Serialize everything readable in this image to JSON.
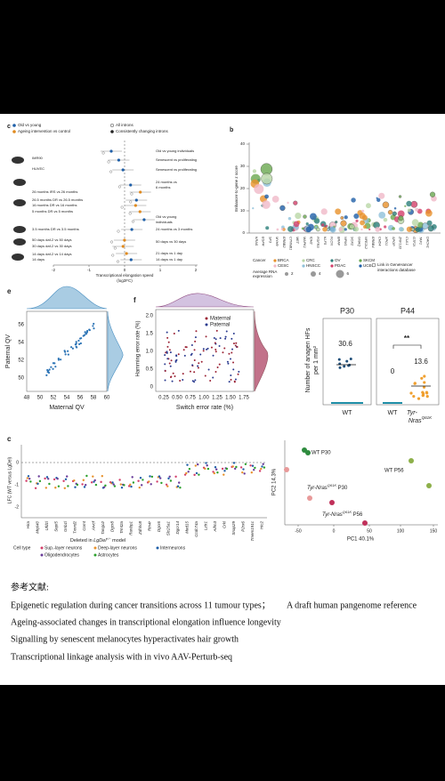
{
  "panel_c_top": {
    "label": "c",
    "legend": [
      "Old vs young",
      "Ageing intervention vs control",
      "All introns",
      "Consistently changing introns"
    ],
    "left_labels": [
      "IMR90",
      "HUVEC",
      "26 months IRS vs 26 months",
      "26.5 months DR vs 26.5 months",
      "16 months DR vs 16 months",
      "5 months DR vs 5 months",
      "3.5 months DR vs 3.5 months",
      "50 days daf-2 vs 50 days",
      "30 days daf-2 vs 30 days",
      "14 days daf-2 vs 14 days",
      "14 days"
    ],
    "right_labels": [
      "Old vs young individuals",
      "Senescent vs proliferating",
      "Senescent vs proliferating",
      "24 months vs",
      "6 months",
      "Old vs young",
      "individuals",
      "24 months vs 3 months",
      "50 days vs 30 days",
      "21 days vs 1 day",
      "14 days vs 1 day"
    ],
    "xticks": [
      "-2",
      "-1",
      "0",
      "1",
      "2"
    ],
    "xlabel": "Transcriptional elongation speed",
    "xlabel_unit": "(log2FC)"
  },
  "panel_b": {
    "label": "b",
    "ylabel": "Enhancer-to-gene z score",
    "yticks": [
      "40",
      "30",
      "20",
      "10",
      "0"
    ],
    "genes": [
      "KRAS",
      "EGFR",
      "SF3",
      "MYH9",
      "ERBB2",
      "CTNNB1",
      "MET",
      "MAPK1",
      "IDH2",
      "FGFR3",
      "KLF5",
      "FLCN",
      "BRAF",
      "NPM1",
      "SOX2",
      "GNAQ",
      "NFE2L2",
      "ERBB4",
      "CHD4",
      "XPO1",
      "SPOP",
      "ZNF133",
      "CUL1",
      "GTF2I",
      "TAF1",
      "DACH1"
    ],
    "cancer_title": "Cancer",
    "cancers": [
      "BRCA",
      "CESC",
      "CRC",
      "HNSCC",
      "OV",
      "PDAC",
      "SKCM",
      "UCEC"
    ],
    "rna_title": [
      "Average RNA",
      "expression"
    ],
    "rna_sizes": [
      "2",
      "4",
      "6"
    ],
    "link": [
      "Link in GeneHancer",
      "interactions database"
    ]
  },
  "panel_e": {
    "label": "e",
    "ylabel": "Paternal QV",
    "xlabel": "Maternal QV",
    "xticks": [
      "48",
      "50",
      "52",
      "54",
      "56",
      "58",
      "60"
    ],
    "yticks": [
      "56",
      "54",
      "52",
      "50"
    ]
  },
  "panel_f": {
    "label": "f",
    "ylabel": "Hamming error rate (%)",
    "xlabel": "Switch error rate (%)",
    "legend": [
      "Maternal",
      "Paternal"
    ],
    "xticks": [
      "0.25",
      "0.50",
      "0.75",
      "1.00",
      "1.25",
      "1.50",
      "1.75"
    ],
    "yticks": [
      "2.0",
      "1.5",
      "1.0",
      "0.5",
      "0"
    ]
  },
  "panel_hair": {
    "ylabel": [
      "Number of anagen HFs",
      "per 1 mm²"
    ],
    "titles": [
      "P30",
      "P44"
    ],
    "values": [
      "30.6",
      "0",
      "13.6"
    ],
    "significance": "**",
    "groups": [
      "WT",
      "WT"
    ],
    "mutant": {
      "name": "Tyr-",
      "gene": "Nras",
      "sup": "Q61K"
    }
  },
  "panel_lfc": {
    "label": "c",
    "ylabel": "LFC (WT versus LgDel)",
    "yticks": [
      "0",
      "-1",
      "-2"
    ],
    "genes": [
      "Hira",
      "Mrpl40",
      "Ufd1l",
      "Sept5",
      "Gnb1l",
      "Txnrd2",
      "Comt",
      "Arvcf",
      "Tango2",
      "Dgcr8",
      "Trmt2a",
      "Ranbp1",
      "Zdhhc8",
      "Rtn4r",
      "Dgcr6",
      "Slc25a1",
      "Dgcr14",
      "Med15",
      "Ccdc74a",
      "Lztr1",
      "Aifm3",
      "Crkl",
      "Snap29",
      "P2rx6",
      "Tmem191c",
      "Hic2"
    ],
    "caption": {
      "pre": "Deleted in ",
      "model": "LgDel",
      "sup": "+/−",
      "post": " model"
    },
    "legend_title": "Cell type",
    "legend": [
      "Sup.-layer neurons",
      "Deep-layer neurons",
      "Interneurons",
      "Oligodendrocytes",
      "Astrocytes"
    ]
  },
  "panel_pca": {
    "xlabel": "PC1 40.1%",
    "ylabel": "PC2 14.3%",
    "xticks": [
      "-50",
      "0",
      "50",
      "100",
      "150"
    ],
    "wt_p30": "WT P30",
    "wt_p56": "WT P56",
    "mut_p30": {
      "name": "Tyr-Nras",
      "sup": "Q61K",
      "suffix": " P30"
    },
    "mut_p56": {
      "name": "Tyr-Nras",
      "sup": "Q61K",
      "suffix": " P56"
    }
  },
  "references": {
    "heading": "参考文献:",
    "items": [
      "Epigenetic regulation during cancer transitions across 11 tumour types；",
      "A draft human pangenome reference",
      "Ageing-associated changes in transcriptional elongation influence longevity",
      "Signalling by senescent melanocytes hyperactivates hair growth",
      "Transcriptional linkage analysis with in vivo AAV-Perturb-seq"
    ]
  }
}
